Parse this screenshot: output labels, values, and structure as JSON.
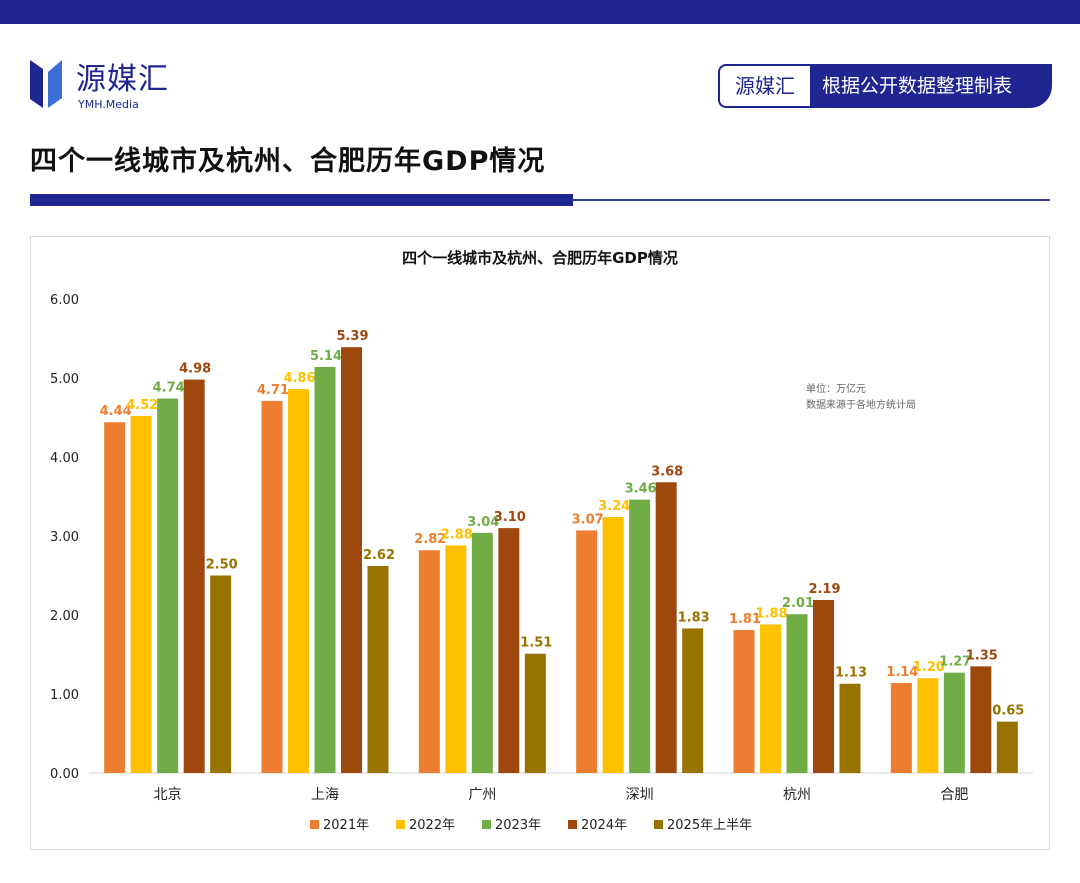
{
  "header": {
    "brand_name": "源媒汇",
    "brand_sub": "YMH.Media",
    "badge_left": "源媒汇",
    "badge_right": "根据公开数据整理制表",
    "page_title": "四个一线城市及杭州、合肥历年GDP情况"
  },
  "colors": {
    "brand": "#1f2591",
    "series": [
      "#ed7d31",
      "#ffc000",
      "#70ad47",
      "#9e480e",
      "#997300"
    ]
  },
  "chart_data": {
    "type": "bar",
    "title": "四个一线城市及杭州、合肥历年GDP情况",
    "xlabel": "",
    "ylabel": "",
    "ylim": [
      0,
      6
    ],
    "yticks": [
      "0.00",
      "1.00",
      "2.00",
      "3.00",
      "4.00",
      "5.00",
      "6.00"
    ],
    "categories": [
      "北京",
      "上海",
      "广州",
      "深圳",
      "杭州",
      "合肥"
    ],
    "series": [
      {
        "name": "2021年",
        "values": [
          4.44,
          4.71,
          2.82,
          3.07,
          1.81,
          1.14
        ],
        "labels": [
          "4.44",
          "4.71",
          "2.82",
          "3.07",
          "1.81",
          "1.14"
        ]
      },
      {
        "name": "2022年",
        "values": [
          4.52,
          4.86,
          2.88,
          3.24,
          1.88,
          1.2
        ],
        "labels": [
          "4.52",
          "4.86",
          "2.88",
          "3.24",
          "1.88",
          "1.20"
        ]
      },
      {
        "name": "2023年",
        "values": [
          4.74,
          5.14,
          3.04,
          3.46,
          2.01,
          1.27
        ],
        "labels": [
          "4.74",
          "5.14",
          "3.04",
          "3.46",
          "2.01",
          "1.27"
        ]
      },
      {
        "name": "2024年",
        "values": [
          4.98,
          5.39,
          3.1,
          3.68,
          2.19,
          1.35
        ],
        "labels": [
          "4.98",
          "5.39",
          "3.10",
          "3.68",
          "2.19",
          "1.35"
        ]
      },
      {
        "name": "2025年上半年",
        "values": [
          2.5,
          2.62,
          1.51,
          1.83,
          1.13,
          0.65
        ],
        "labels": [
          "2.50",
          "2.62",
          "1.51",
          "1.83",
          "1.13",
          "0.65"
        ]
      }
    ],
    "legend_position": "bottom",
    "annotations": [
      "单位：万亿元",
      "数据来源于各地方统计局"
    ]
  }
}
